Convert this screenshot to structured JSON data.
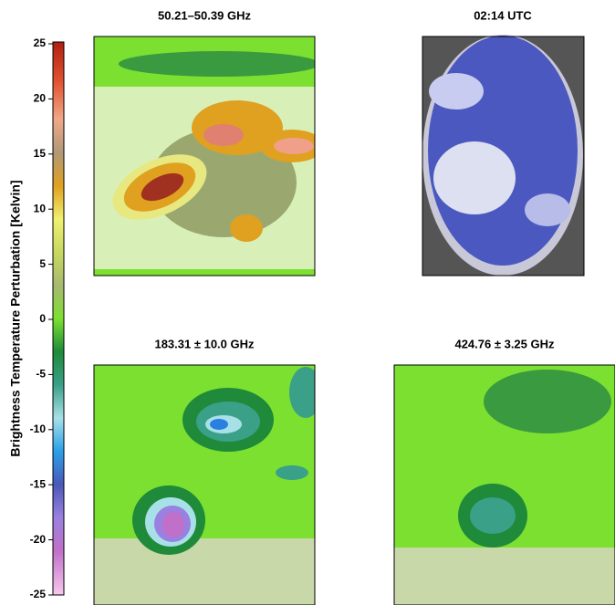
{
  "chart_data": {
    "type": "colorbar-panels",
    "ylabel": "Brightness Temperature Perturbation [Kelvin]",
    "ylim": [
      -25,
      25
    ],
    "yticks": [
      -25,
      -20,
      -15,
      -10,
      -5,
      0,
      5,
      10,
      15,
      20,
      25
    ],
    "panels": [
      {
        "title": "50.21–50.39 GHz"
      },
      {
        "title": "02:14 UTC"
      },
      {
        "title": "183.31 ± 10.0 GHz"
      },
      {
        "title": "424.76 ± 3.25 GHz"
      }
    ]
  }
}
